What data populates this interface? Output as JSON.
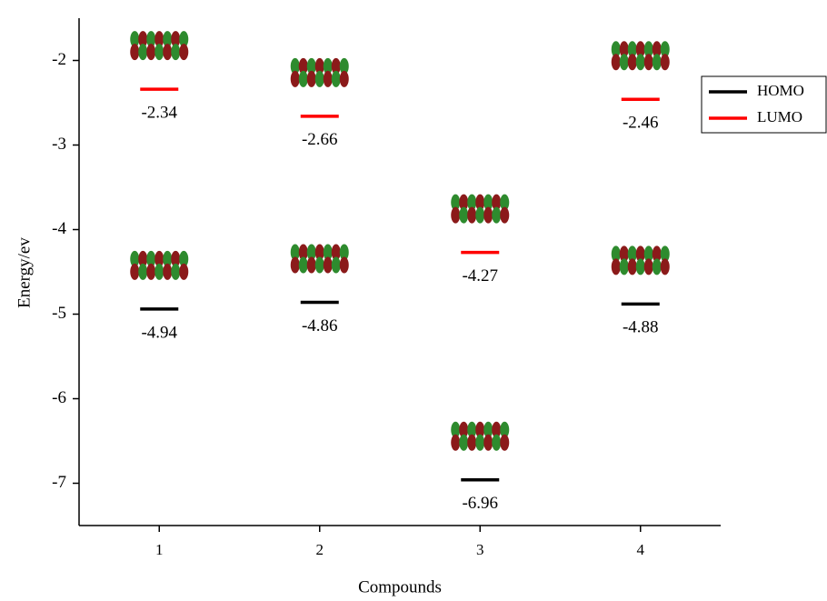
{
  "chart_data": {
    "type": "energy-level",
    "x_label": "Compounds",
    "y_label": "Energy/ev",
    "x": [
      1,
      2,
      3,
      4
    ],
    "series": [
      {
        "name": "HOMO",
        "color": "#000000",
        "values": [
          -4.94,
          -4.86,
          -6.96,
          -4.88
        ]
      },
      {
        "name": "LUMO",
        "color": "#ff0000",
        "values": [
          -2.34,
          -2.66,
          -4.27,
          -2.46
        ]
      }
    ],
    "xlim": [
      0.5,
      4.5
    ],
    "xticks": [
      1,
      2,
      3,
      4
    ],
    "ylim": [
      -7.5,
      -1.5
    ],
    "yticks": [
      -2,
      -3,
      -4,
      -5,
      -6,
      -7
    ],
    "legend": "upper right"
  }
}
